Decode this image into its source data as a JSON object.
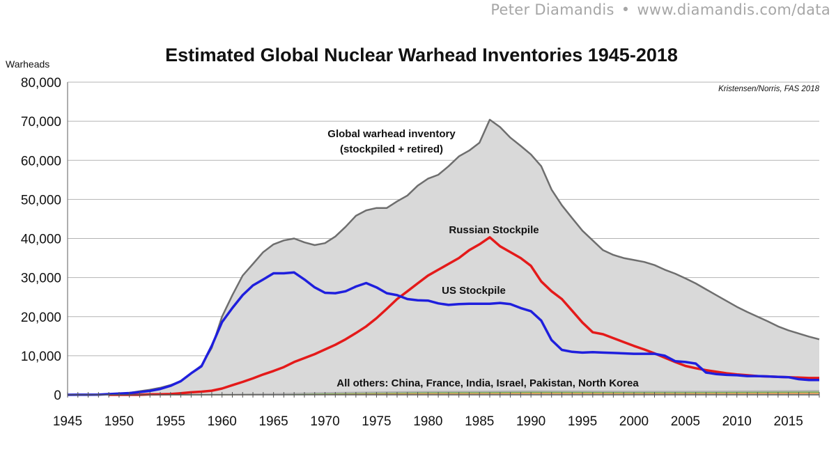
{
  "header": {
    "author": "Peter Diamandis",
    "separator": "•",
    "url": "www.diamandis.com/data"
  },
  "chart_data": {
    "type": "area",
    "title": "Estimated Global Nuclear Warhead Inventories 1945-2018",
    "ylabel": "Warheads",
    "xlabel": "",
    "source": "Kristensen/Norris, FAS 2018",
    "xlim": [
      1945,
      2018
    ],
    "ylim": [
      0,
      80000
    ],
    "x_ticks": [
      1945,
      1950,
      1955,
      1960,
      1965,
      1970,
      1975,
      1980,
      1985,
      1990,
      1995,
      2000,
      2005,
      2010,
      2015
    ],
    "y_ticks": [
      0,
      10000,
      20000,
      30000,
      40000,
      50000,
      60000,
      70000,
      80000
    ],
    "y_tick_labels": [
      "0",
      "10,000",
      "20,000",
      "30,000",
      "40,000",
      "50,000",
      "60,000",
      "70,000",
      "80,000"
    ],
    "grid": true,
    "colors": {
      "global": "#d9d9d9",
      "global_edge": "#6e6e6e",
      "us": "#1f1fdd",
      "russia": "#e41a1a",
      "others": [
        "#e8a060",
        "#7cb35c",
        "#b0b0b0"
      ]
    },
    "annotations": {
      "global_line1": "Global warhead inventory",
      "global_line2": "(stockpiled + retired)",
      "russia": "Russian Stockpile",
      "us": "US Stockpile",
      "others": "All others: China, France, India, Israel, Pakistan, North Korea"
    },
    "series": [
      {
        "name": "Global warhead inventory (stockpiled + retired)",
        "points": [
          [
            1945,
            2
          ],
          [
            1946,
            9
          ],
          [
            1947,
            13
          ],
          [
            1948,
            50
          ],
          [
            1949,
            170
          ],
          [
            1950,
            300
          ],
          [
            1951,
            500
          ],
          [
            1952,
            900
          ],
          [
            1953,
            1300
          ],
          [
            1954,
            1800
          ],
          [
            1955,
            2500
          ],
          [
            1956,
            3500
          ],
          [
            1957,
            5500
          ],
          [
            1958,
            7500
          ],
          [
            1959,
            12000
          ],
          [
            1960,
            20000
          ],
          [
            1961,
            25500
          ],
          [
            1962,
            30500
          ],
          [
            1963,
            33500
          ],
          [
            1964,
            36500
          ],
          [
            1965,
            38500
          ],
          [
            1966,
            39500
          ],
          [
            1967,
            40000
          ],
          [
            1968,
            39000
          ],
          [
            1969,
            38300
          ],
          [
            1970,
            38800
          ],
          [
            1971,
            40500
          ],
          [
            1972,
            43000
          ],
          [
            1973,
            45800
          ],
          [
            1974,
            47200
          ],
          [
            1975,
            47800
          ],
          [
            1976,
            47800
          ],
          [
            1977,
            49500
          ],
          [
            1978,
            51000
          ],
          [
            1979,
            53500
          ],
          [
            1980,
            55300
          ],
          [
            1981,
            56300
          ],
          [
            1982,
            58500
          ],
          [
            1983,
            61000
          ],
          [
            1984,
            62500
          ],
          [
            1985,
            64500
          ],
          [
            1986,
            70400
          ],
          [
            1987,
            68500
          ],
          [
            1988,
            65800
          ],
          [
            1989,
            63700
          ],
          [
            1990,
            61500
          ],
          [
            1991,
            58500
          ],
          [
            1992,
            52500
          ],
          [
            1993,
            48500
          ],
          [
            1994,
            45200
          ],
          [
            1995,
            42000
          ],
          [
            1996,
            39500
          ],
          [
            1997,
            37000
          ],
          [
            1998,
            35800
          ],
          [
            1999,
            35000
          ],
          [
            2000,
            34500
          ],
          [
            2001,
            34000
          ],
          [
            2002,
            33200
          ],
          [
            2003,
            32000
          ],
          [
            2004,
            31000
          ],
          [
            2005,
            29800
          ],
          [
            2006,
            28500
          ],
          [
            2007,
            27000
          ],
          [
            2008,
            25500
          ],
          [
            2009,
            24000
          ],
          [
            2010,
            22500
          ],
          [
            2011,
            21200
          ],
          [
            2012,
            20000
          ],
          [
            2013,
            18800
          ],
          [
            2014,
            17500
          ],
          [
            2015,
            16500
          ],
          [
            2016,
            15700
          ],
          [
            2017,
            14900
          ],
          [
            2018,
            14200
          ]
        ]
      },
      {
        "name": "US Stockpile",
        "points": [
          [
            1945,
            2
          ],
          [
            1946,
            9
          ],
          [
            1947,
            13
          ],
          [
            1948,
            50
          ],
          [
            1949,
            170
          ],
          [
            1950,
            300
          ],
          [
            1951,
            450
          ],
          [
            1952,
            700
          ],
          [
            1953,
            1000
          ],
          [
            1954,
            1500
          ],
          [
            1955,
            2300
          ],
          [
            1956,
            3500
          ],
          [
            1957,
            5500
          ],
          [
            1958,
            7300
          ],
          [
            1959,
            12500
          ],
          [
            1960,
            18600
          ],
          [
            1961,
            22200
          ],
          [
            1962,
            25500
          ],
          [
            1963,
            28000
          ],
          [
            1964,
            29500
          ],
          [
            1965,
            31100
          ],
          [
            1966,
            31100
          ],
          [
            1967,
            31300
          ],
          [
            1968,
            29500
          ],
          [
            1969,
            27500
          ],
          [
            1970,
            26100
          ],
          [
            1971,
            26000
          ],
          [
            1972,
            26500
          ],
          [
            1973,
            27700
          ],
          [
            1974,
            28600
          ],
          [
            1975,
            27500
          ],
          [
            1976,
            26000
          ],
          [
            1977,
            25500
          ],
          [
            1978,
            24500
          ],
          [
            1979,
            24200
          ],
          [
            1980,
            24100
          ],
          [
            1981,
            23400
          ],
          [
            1982,
            23000
          ],
          [
            1983,
            23200
          ],
          [
            1984,
            23300
          ],
          [
            1985,
            23300
          ],
          [
            1986,
            23300
          ],
          [
            1987,
            23500
          ],
          [
            1988,
            23200
          ],
          [
            1989,
            22200
          ],
          [
            1990,
            21400
          ],
          [
            1991,
            19000
          ],
          [
            1992,
            14000
          ],
          [
            1993,
            11500
          ],
          [
            1994,
            11000
          ],
          [
            1995,
            10800
          ],
          [
            1996,
            10900
          ],
          [
            1997,
            10800
          ],
          [
            1998,
            10700
          ],
          [
            1999,
            10600
          ],
          [
            2000,
            10500
          ],
          [
            2001,
            10500
          ],
          [
            2002,
            10500
          ],
          [
            2003,
            10000
          ],
          [
            2004,
            8600
          ],
          [
            2005,
            8400
          ],
          [
            2006,
            8000
          ],
          [
            2007,
            5700
          ],
          [
            2008,
            5300
          ],
          [
            2009,
            5100
          ],
          [
            2010,
            5000
          ],
          [
            2011,
            4800
          ],
          [
            2012,
            4800
          ],
          [
            2013,
            4700
          ],
          [
            2014,
            4600
          ],
          [
            2015,
            4500
          ],
          [
            2016,
            4000
          ],
          [
            2017,
            3800
          ],
          [
            2018,
            3800
          ]
        ]
      },
      {
        "name": "Russian Stockpile",
        "points": [
          [
            1949,
            0
          ],
          [
            1950,
            0
          ],
          [
            1951,
            0
          ],
          [
            1952,
            0
          ],
          [
            1953,
            100
          ],
          [
            1954,
            150
          ],
          [
            1955,
            200
          ],
          [
            1956,
            400
          ],
          [
            1957,
            650
          ],
          [
            1958,
            800
          ],
          [
            1959,
            1050
          ],
          [
            1960,
            1600
          ],
          [
            1961,
            2450
          ],
          [
            1962,
            3300
          ],
          [
            1963,
            4200
          ],
          [
            1964,
            5200
          ],
          [
            1965,
            6100
          ],
          [
            1966,
            7100
          ],
          [
            1967,
            8400
          ],
          [
            1968,
            9400
          ],
          [
            1969,
            10400
          ],
          [
            1970,
            11600
          ],
          [
            1971,
            12800
          ],
          [
            1972,
            14200
          ],
          [
            1973,
            15800
          ],
          [
            1974,
            17500
          ],
          [
            1975,
            19600
          ],
          [
            1976,
            22000
          ],
          [
            1977,
            24500
          ],
          [
            1978,
            26500
          ],
          [
            1979,
            28500
          ],
          [
            1980,
            30500
          ],
          [
            1981,
            32000
          ],
          [
            1982,
            33500
          ],
          [
            1983,
            35000
          ],
          [
            1984,
            37000
          ],
          [
            1985,
            38500
          ],
          [
            1986,
            40300
          ],
          [
            1987,
            38000
          ],
          [
            1988,
            36500
          ],
          [
            1989,
            35000
          ],
          [
            1990,
            33000
          ],
          [
            1991,
            29000
          ],
          [
            1992,
            26500
          ],
          [
            1993,
            24500
          ],
          [
            1994,
            21500
          ],
          [
            1995,
            18500
          ],
          [
            1996,
            16000
          ],
          [
            1997,
            15500
          ],
          [
            1998,
            14500
          ],
          [
            1999,
            13500
          ],
          [
            2000,
            12500
          ],
          [
            2001,
            11600
          ],
          [
            2002,
            10600
          ],
          [
            2003,
            9500
          ],
          [
            2004,
            8400
          ],
          [
            2005,
            7400
          ],
          [
            2006,
            6800
          ],
          [
            2007,
            6300
          ],
          [
            2008,
            5900
          ],
          [
            2009,
            5500
          ],
          [
            2010,
            5200
          ],
          [
            2011,
            5000
          ],
          [
            2012,
            4800
          ],
          [
            2013,
            4700
          ],
          [
            2014,
            4600
          ],
          [
            2015,
            4500
          ],
          [
            2016,
            4400
          ],
          [
            2017,
            4300
          ],
          [
            2018,
            4300
          ]
        ]
      },
      {
        "name": "All others: China, France, India, Israel, Pakistan, North Korea",
        "points": [
          [
            1952,
            0
          ],
          [
            1955,
            30
          ],
          [
            1960,
            80
          ],
          [
            1965,
            250
          ],
          [
            1970,
            550
          ],
          [
            1975,
            700
          ],
          [
            1980,
            850
          ],
          [
            1985,
            900
          ],
          [
            1990,
            1000
          ],
          [
            1995,
            950
          ],
          [
            2000,
            900
          ],
          [
            2005,
            900
          ],
          [
            2010,
            960
          ],
          [
            2015,
            1030
          ],
          [
            2018,
            1060
          ]
        ]
      }
    ]
  }
}
